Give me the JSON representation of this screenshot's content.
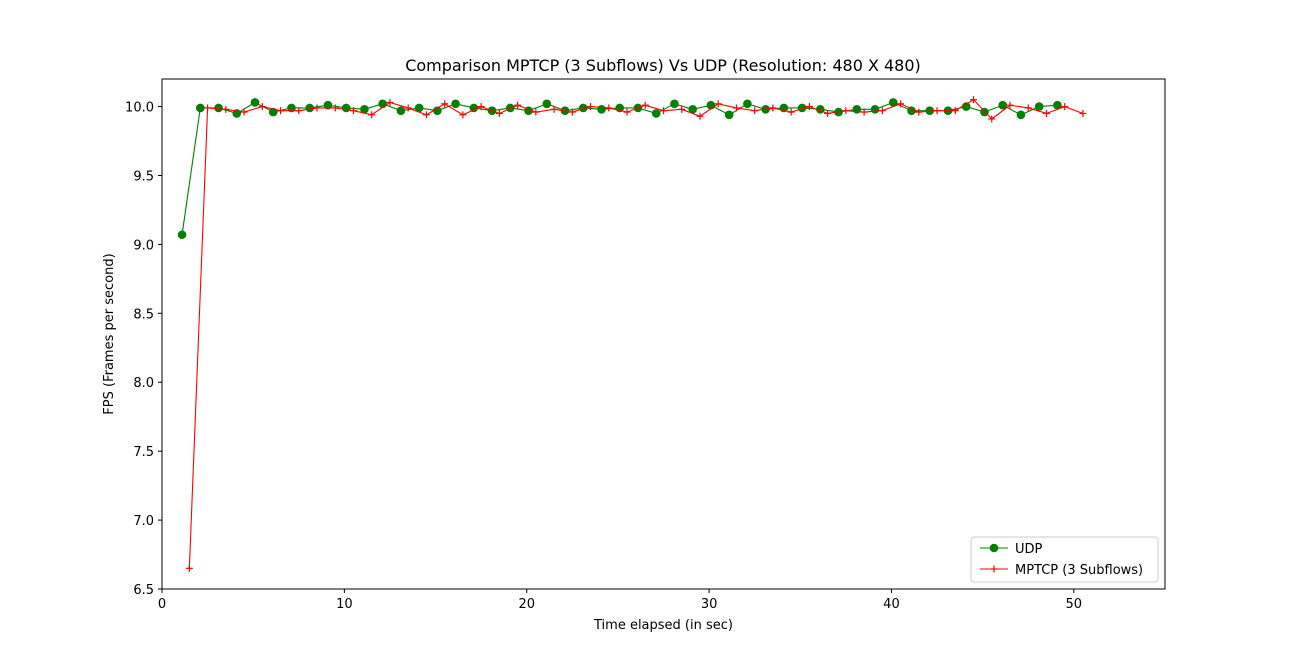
{
  "chart_data": {
    "type": "line",
    "title": "Comparison MPTCP (3 Subflows) Vs UDP (Resolution: 480 X 480)",
    "xlabel": "Time elapsed (in sec)",
    "ylabel": "FPS (Frames per second)",
    "xlim": [
      0,
      55
    ],
    "ylim": [
      6.5,
      10.2
    ],
    "xticks": [
      0,
      10,
      20,
      30,
      40,
      50
    ],
    "xtick_labels": [
      "0",
      "10",
      "20",
      "30",
      "40",
      "50"
    ],
    "yticks": [
      6.5,
      7.0,
      7.5,
      8.0,
      8.5,
      9.0,
      9.5,
      10.0
    ],
    "ytick_labels": [
      "6.5",
      "7.0",
      "7.5",
      "8.0",
      "8.5",
      "9.0",
      "9.5",
      "10.0"
    ],
    "grid": false,
    "legend_position": "lower-right",
    "series": [
      {
        "name": "UDP",
        "color": "#008000",
        "marker": "circle",
        "x": [
          1.1,
          2.1,
          3.1,
          4.1,
          5.1,
          6.1,
          7.1,
          8.1,
          9.1,
          10.1,
          11.1,
          12.1,
          13.1,
          14.1,
          15.1,
          16.1,
          17.1,
          18.1,
          19.1,
          20.1,
          21.1,
          22.1,
          23.1,
          24.1,
          25.1,
          26.1,
          27.1,
          28.1,
          29.1,
          30.1,
          31.1,
          32.1,
          33.1,
          34.1,
          35.1,
          36.1,
          37.1,
          38.1,
          39.1,
          40.1,
          41.1,
          42.1,
          43.1,
          44.1,
          45.1,
          46.1,
          47.1,
          48.1,
          49.1
        ],
        "y": [
          9.07,
          9.99,
          9.99,
          9.95,
          10.03,
          9.96,
          9.99,
          9.99,
          10.01,
          9.99,
          9.98,
          10.02,
          9.97,
          9.99,
          9.97,
          10.02,
          9.99,
          9.97,
          9.99,
          9.97,
          10.02,
          9.97,
          9.99,
          9.98,
          9.99,
          9.99,
          9.95,
          10.02,
          9.98,
          10.01,
          9.94,
          10.02,
          9.98,
          9.99,
          9.99,
          9.98,
          9.96,
          9.98,
          9.98,
          10.03,
          9.97,
          9.97,
          9.97,
          10.0,
          9.96,
          10.01,
          9.94,
          10.0,
          10.01
        ]
      },
      {
        "name": "MPTCP (3 Subflows)",
        "color": "#ff0000",
        "marker": "plus",
        "x": [
          1.5,
          2.5,
          3.5,
          4.5,
          5.5,
          6.5,
          7.5,
          8.5,
          9.5,
          10.5,
          11.5,
          12.5,
          13.5,
          14.5,
          15.5,
          16.5,
          17.5,
          18.5,
          19.5,
          20.5,
          21.5,
          22.5,
          23.5,
          24.5,
          25.5,
          26.5,
          27.5,
          28.5,
          29.5,
          30.5,
          31.5,
          32.5,
          33.5,
          34.5,
          35.5,
          36.5,
          37.5,
          38.5,
          39.5,
          40.5,
          41.5,
          42.5,
          43.5,
          44.5,
          45.5,
          46.5,
          47.5,
          48.5,
          49.5,
          50.5
        ],
        "y": [
          6.65,
          9.99,
          9.98,
          9.96,
          10.0,
          9.97,
          9.97,
          9.99,
          9.99,
          9.97,
          9.94,
          10.03,
          9.99,
          9.94,
          10.02,
          9.94,
          10.0,
          9.95,
          10.01,
          9.96,
          9.98,
          9.96,
          10.0,
          9.99,
          9.96,
          10.01,
          9.97,
          9.98,
          9.93,
          10.02,
          9.99,
          9.97,
          9.99,
          9.96,
          10.0,
          9.95,
          9.97,
          9.96,
          9.97,
          10.02,
          9.96,
          9.97,
          9.97,
          10.05,
          9.91,
          10.01,
          9.99,
          9.95,
          10.0,
          9.95
        ]
      }
    ]
  }
}
